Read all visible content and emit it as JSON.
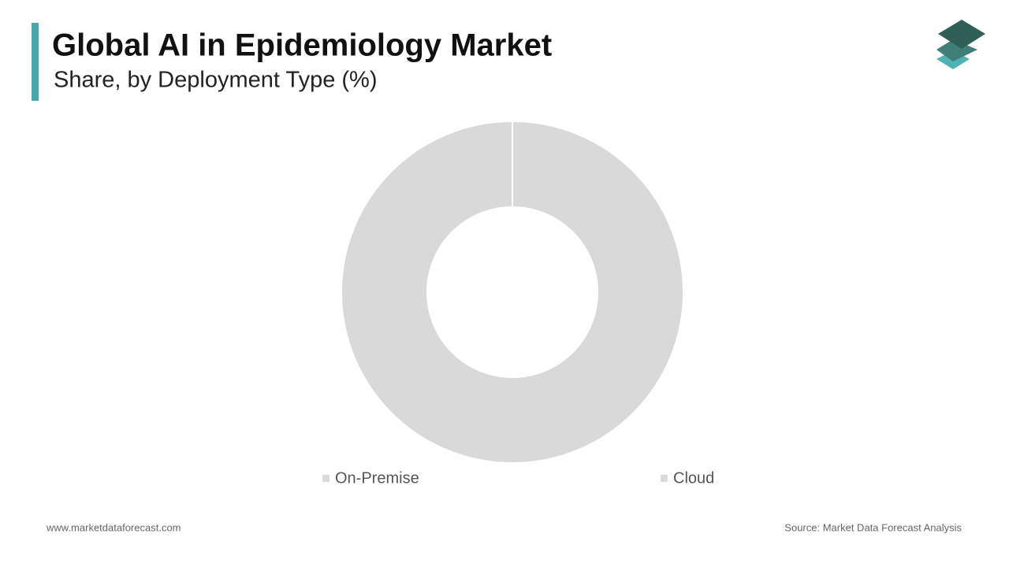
{
  "chart_data": {
    "type": "donut",
    "title": "Global AI in Epidemiology Market",
    "subtitle": "Share, by Deployment Type (%)",
    "categories": [
      "On-Premise",
      "Cloud"
    ],
    "values": [
      100,
      0
    ],
    "colors": [
      "#d9d9d9",
      "#d9d9d9"
    ]
  },
  "footer": {
    "left": "www.marketdataforecast.com",
    "right": "Source: Market Data Forecast Analysis"
  }
}
